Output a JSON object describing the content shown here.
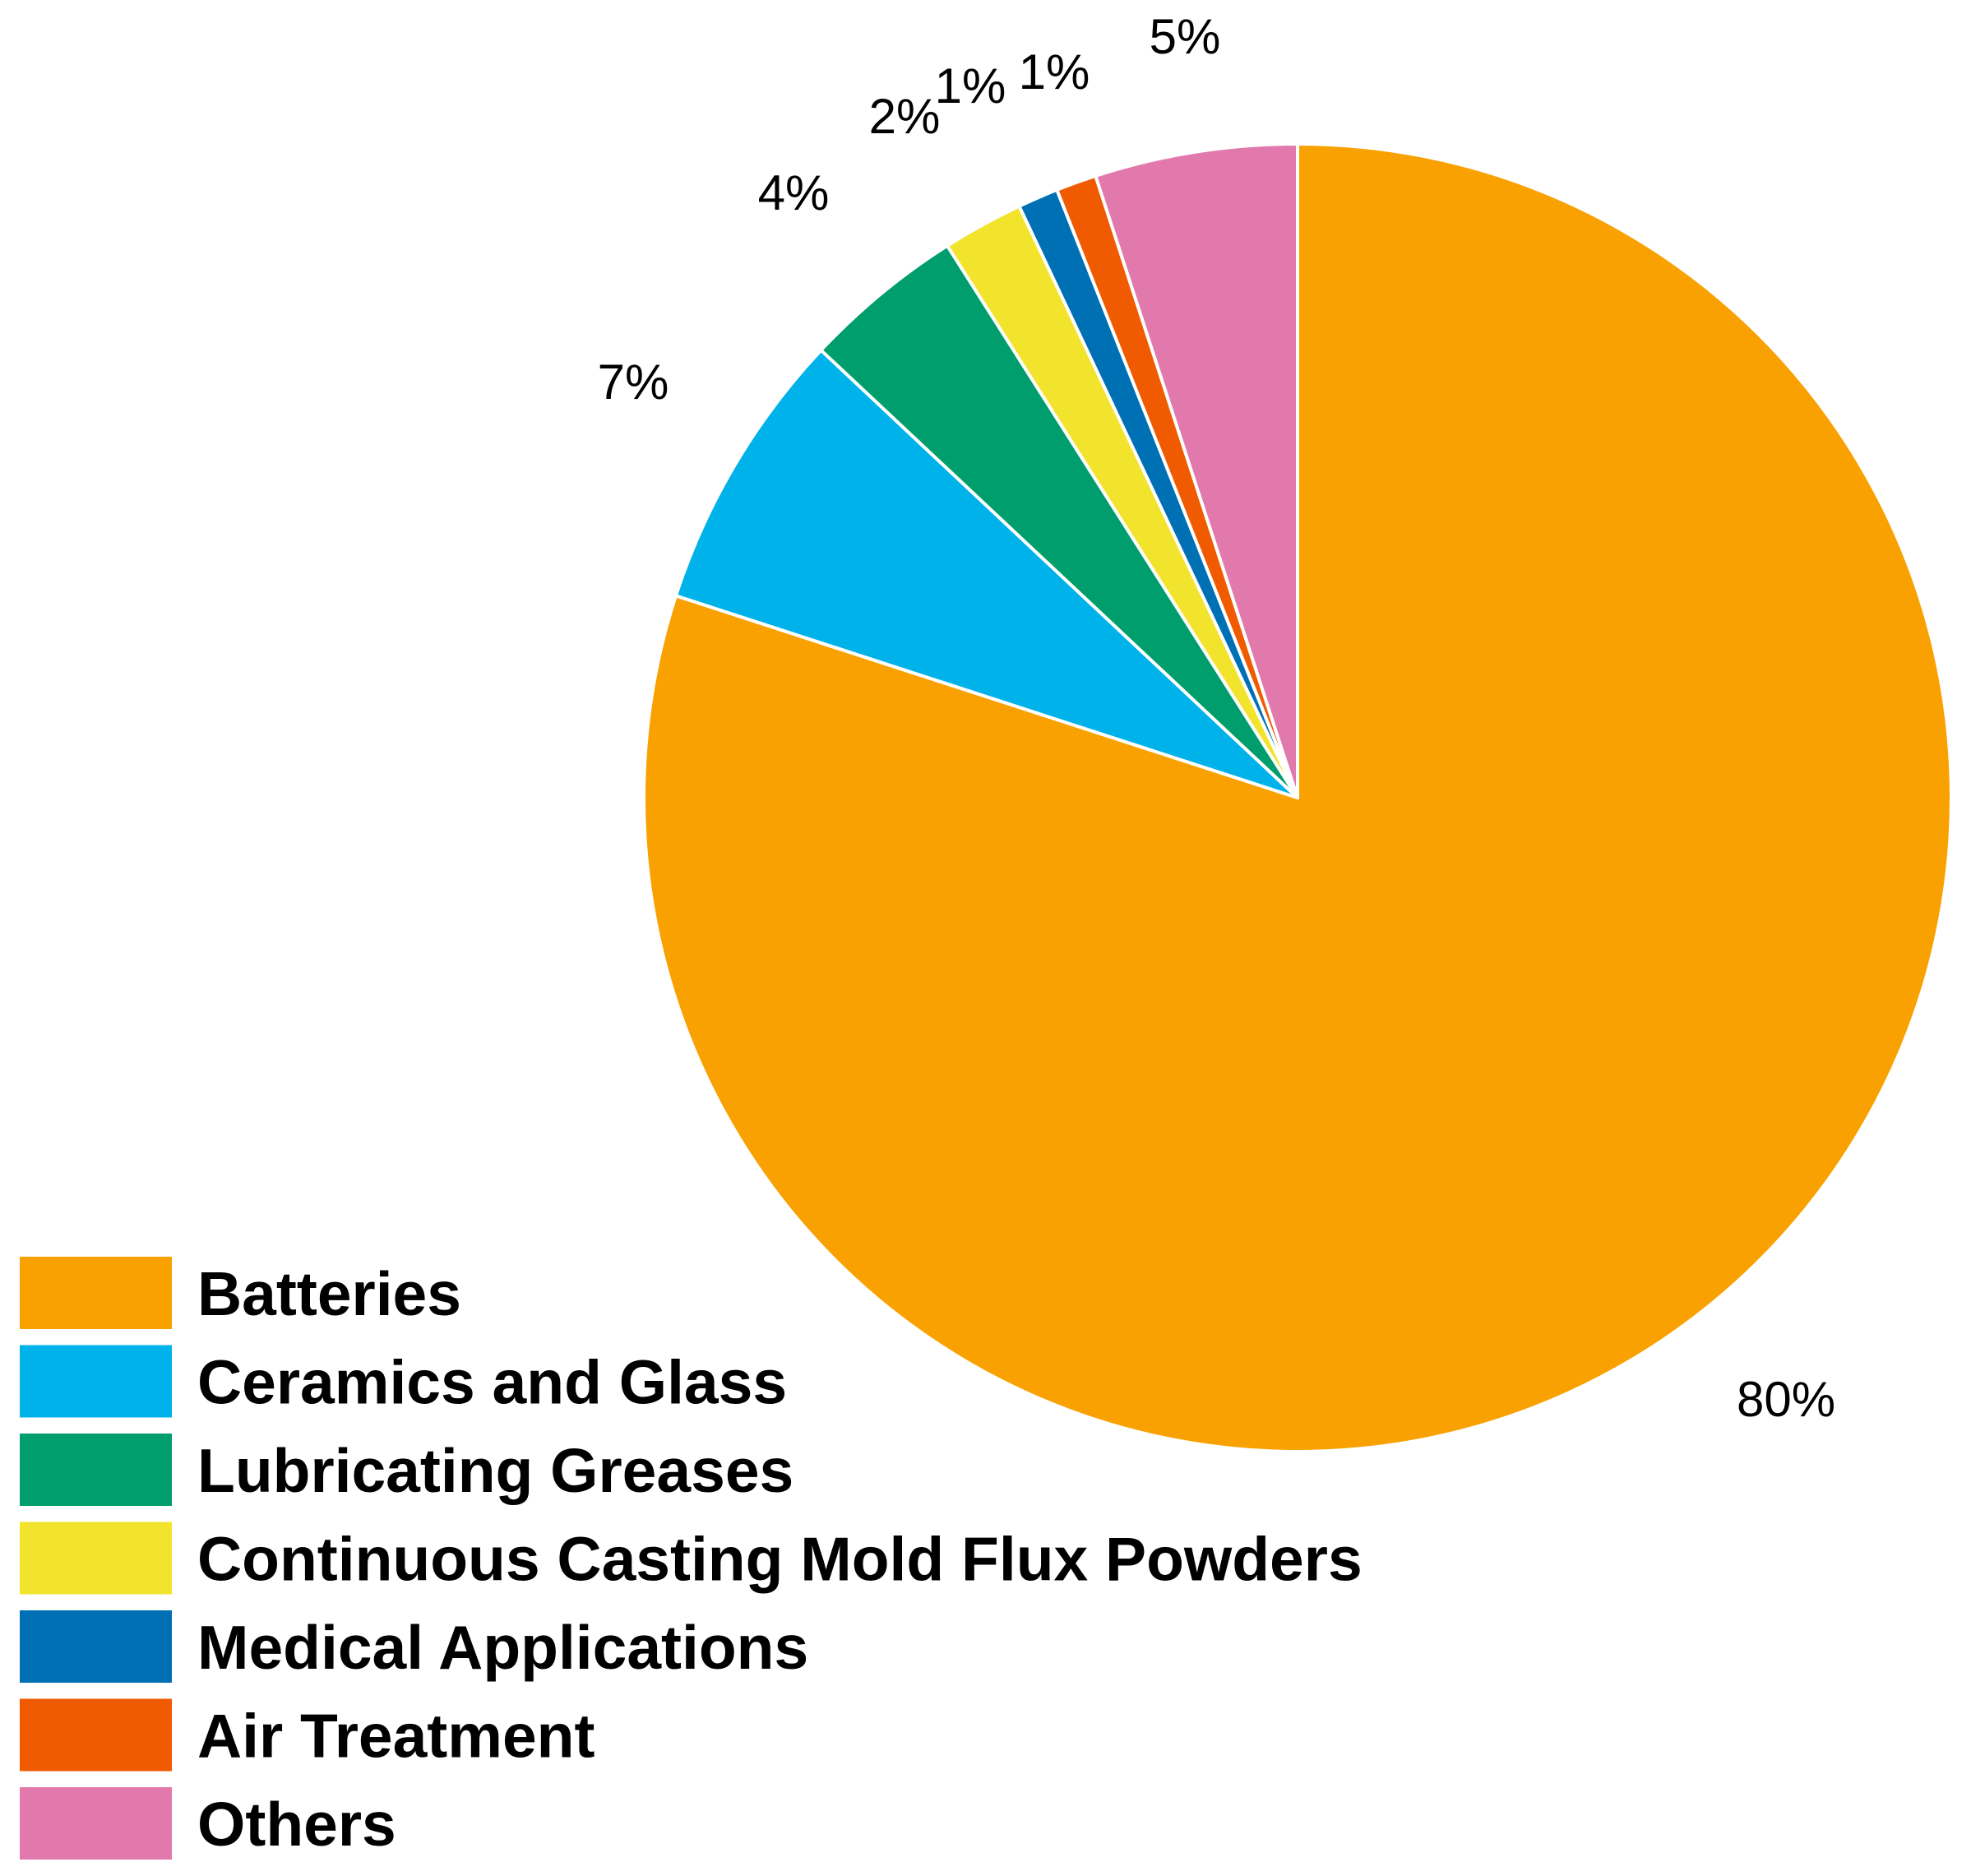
{
  "chart_data": {
    "type": "pie",
    "title": "",
    "start_angle": "12 o'clock",
    "direction": "clockwise",
    "legend_position": "bottom-left",
    "slices": [
      {
        "label": "Batteries",
        "value": 80,
        "value_label": "80%",
        "color": "#F8A100"
      },
      {
        "label": "Ceramics and Glass",
        "value": 7,
        "value_label": "7%",
        "color": "#00B2EA"
      },
      {
        "label": "Lubricating Greases",
        "value": 4,
        "value_label": "4%",
        "color": "#009E6C"
      },
      {
        "label": "Continuous Casting Mold Flux Powders",
        "value": 2,
        "value_label": "2%",
        "color": "#F2E42C"
      },
      {
        "label": "Medical Applications",
        "value": 1,
        "value_label": "1%",
        "color": "#0070B5"
      },
      {
        "label": "Air Treatment",
        "value": 1,
        "value_label": "1%",
        "color": "#F05A00"
      },
      {
        "label": "Others",
        "value": 5,
        "value_label": "5%",
        "color": "#E279AC"
      }
    ]
  }
}
